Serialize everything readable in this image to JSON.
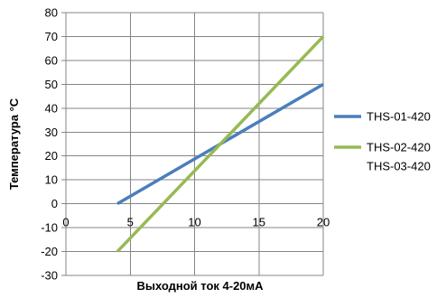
{
  "chart_data": {
    "type": "line",
    "title": "",
    "xlabel": "Выходной ток 4-20мА",
    "ylabel": "Температура °С",
    "xlim": [
      0,
      20
    ],
    "ylim": [
      -30,
      80
    ],
    "x_ticks": [
      "0",
      "5",
      "10",
      "15",
      "20"
    ],
    "y_ticks": [
      "-30",
      "-20",
      "-10",
      "0",
      "10",
      "20",
      "30",
      "40",
      "50",
      "60",
      "70",
      "80"
    ],
    "grid": true,
    "legend_position": "right",
    "series": [
      {
        "name_lines": [
          "THS-01-420"
        ],
        "color": "#4a7ebb",
        "x": [
          4,
          20
        ],
        "y": [
          0,
          50
        ]
      },
      {
        "name_lines": [
          "THS-02-420",
          "THS-03-420"
        ],
        "color": "#98b954",
        "x": [
          4,
          20
        ],
        "y": [
          -20,
          70
        ]
      }
    ]
  }
}
